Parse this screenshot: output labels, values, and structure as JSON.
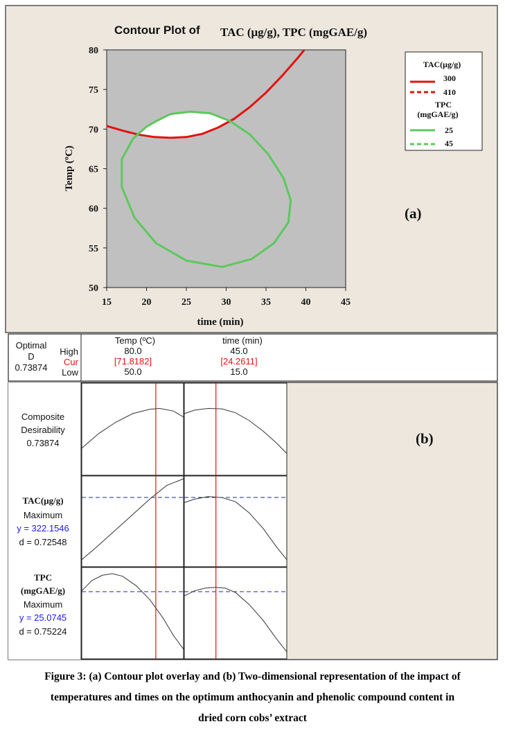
{
  "colors": {
    "panel_bg": "#ede7de",
    "plot_bg": "#c0c0c0",
    "tac": "#e51010",
    "tpc": "#5cc85c",
    "blue": "#1a1ae6",
    "cur_red": "#e51010"
  },
  "chart_data": [
    {
      "type": "contour",
      "title_prefix": "Contour Plot of",
      "title_main": "TAC (μg/g), TPC (mgGAE/g)",
      "xlabel": "time (min)",
      "ylabel": "Temp (ºC)",
      "xlim": [
        15,
        45
      ],
      "ylim": [
        50,
        80
      ],
      "xticks": [
        15,
        20,
        25,
        30,
        35,
        40,
        45
      ],
      "yticks": [
        50,
        55,
        60,
        65,
        70,
        75,
        80
      ],
      "panel_label": "(a)",
      "legend": {
        "groups": [
          {
            "title": "TAC(μg/g)",
            "entries": [
              {
                "label": "300",
                "style": "solid"
              },
              {
                "label": "410",
                "style": "dashed"
              }
            ]
          },
          {
            "title_line1": "TPC",
            "title_line2": "(mgGAE/g)",
            "entries": [
              {
                "label": "25",
                "style": "solid"
              },
              {
                "label": "45",
                "style": "dashed"
              }
            ]
          }
        ]
      },
      "series": [
        {
          "name": "TAC 300",
          "points": [
            [
              15,
              70.4
            ],
            [
              17,
              69.8
            ],
            [
              19,
              69.3
            ],
            [
              21,
              69.0
            ],
            [
              23,
              68.9
            ],
            [
              25,
              69.0
            ],
            [
              27,
              69.4
            ],
            [
              29,
              70.2
            ],
            [
              31,
              71.3
            ],
            [
              33,
              72.8
            ],
            [
              35,
              74.6
            ],
            [
              37,
              76.7
            ],
            [
              39,
              79.0
            ],
            [
              39.8,
              80
            ]
          ]
        },
        {
          "name": "TPC 25",
          "points": [
            [
              21.2,
              71.0
            ],
            [
              23,
              71.9
            ],
            [
              25.5,
              72.2
            ],
            [
              28,
              72.0
            ],
            [
              30.5,
              71.0
            ],
            [
              33,
              69.3
            ],
            [
              35.3,
              66.8
            ],
            [
              37.2,
              63.8
            ],
            [
              38.1,
              61.0
            ],
            [
              37.8,
              58.2
            ],
            [
              36.0,
              55.6
            ],
            [
              33.2,
              53.6
            ],
            [
              29.5,
              52.6
            ],
            [
              25.0,
              53.4
            ],
            [
              21.2,
              55.6
            ],
            [
              18.5,
              58.8
            ],
            [
              16.9,
              62.7
            ],
            [
              16.9,
              66.2
            ],
            [
              18.3,
              68.8
            ],
            [
              20.0,
              70.3
            ],
            [
              21.2,
              71.0
            ]
          ]
        }
      ]
    },
    {
      "type": "line",
      "panel_label": "(b)",
      "header": {
        "optimal_line1": "Optimal",
        "optimal_line2": "D",
        "optimal_value": "0.73874",
        "high": "High",
        "cur": "Cur",
        "low": "Low",
        "factors": [
          {
            "name": "Temp (ºC)",
            "high": "80.0",
            "cur": "[71.8182]",
            "low": "50.0",
            "xlim": [
              50,
              80
            ],
            "cur_value": 71.8182
          },
          {
            "name": "time (min)",
            "high": "45.0",
            "cur": "[24.2611]",
            "low": "15.0",
            "xlim": [
              15,
              45
            ],
            "cur_value": 24.2611
          }
        ]
      },
      "rows": [
        {
          "name": "Composite",
          "name2": "Desirability",
          "value_text": "0.73874",
          "curves": [
            [
              [
                50,
                0.28
              ],
              [
                55,
                0.45
              ],
              [
                60,
                0.58
              ],
              [
                65,
                0.68
              ],
              [
                70,
                0.73
              ],
              [
                73,
                0.74
              ],
              [
                77,
                0.71
              ],
              [
                80,
                0.64
              ]
            ],
            [
              [
                15,
                0.68
              ],
              [
                18,
                0.72
              ],
              [
                22,
                0.74
              ],
              [
                26,
                0.735
              ],
              [
                30,
                0.69
              ],
              [
                34,
                0.6
              ],
              [
                38,
                0.48
              ],
              [
                42,
                0.34
              ],
              [
                45,
                0.22
              ]
            ]
          ],
          "ylim": [
            0,
            1
          ],
          "target": null
        },
        {
          "name": "TAC(μg/g)",
          "goal": "Maximum",
          "y_text": "y = 322.1546",
          "d_text": "d = 0.72548",
          "curves": [
            [
              [
                50,
                0.05
              ],
              [
                55,
                0.22
              ],
              [
                60,
                0.4
              ],
              [
                65,
                0.58
              ],
              [
                70,
                0.76
              ],
              [
                75,
                0.92
              ],
              [
                80,
                1.0
              ]
            ],
            [
              [
                15,
                0.72
              ],
              [
                18,
                0.76
              ],
              [
                22,
                0.79
              ],
              [
                26,
                0.78
              ],
              [
                30,
                0.73
              ],
              [
                34,
                0.6
              ],
              [
                38,
                0.42
              ],
              [
                42,
                0.2
              ],
              [
                45,
                0.05
              ]
            ]
          ],
          "ylim": [
            0,
            1
          ],
          "target": 0.78
        },
        {
          "name": "TPC",
          "name2": "(mgGAE/g)",
          "goal": "Maximum",
          "y_text": "y = 25.0745",
          "d_text": "d = 0.75224",
          "curves": [
            [
              [
                50,
                0.76
              ],
              [
                53,
                0.88
              ],
              [
                56,
                0.94
              ],
              [
                59,
                0.96
              ],
              [
                62,
                0.93
              ],
              [
                66,
                0.82
              ],
              [
                70,
                0.66
              ],
              [
                74,
                0.44
              ],
              [
                77,
                0.24
              ],
              [
                80,
                0.08
              ]
            ],
            [
              [
                15,
                0.7
              ],
              [
                18,
                0.76
              ],
              [
                21,
                0.79
              ],
              [
                24,
                0.8
              ],
              [
                27,
                0.79
              ],
              [
                30,
                0.74
              ],
              [
                34,
                0.6
              ],
              [
                38,
                0.42
              ],
              [
                42,
                0.2
              ],
              [
                45,
                0.05
              ]
            ]
          ],
          "ylim": [
            0,
            1
          ],
          "target": 0.75
        }
      ]
    }
  ],
  "caption_lines": [
    "Figure 3: (a) Contour plot overlay and (b) Two-dimensional representation of the impact of",
    "temperatures and times on the optimum anthocyanin and phenolic compound content in",
    "dried corn cobs’ extract"
  ]
}
